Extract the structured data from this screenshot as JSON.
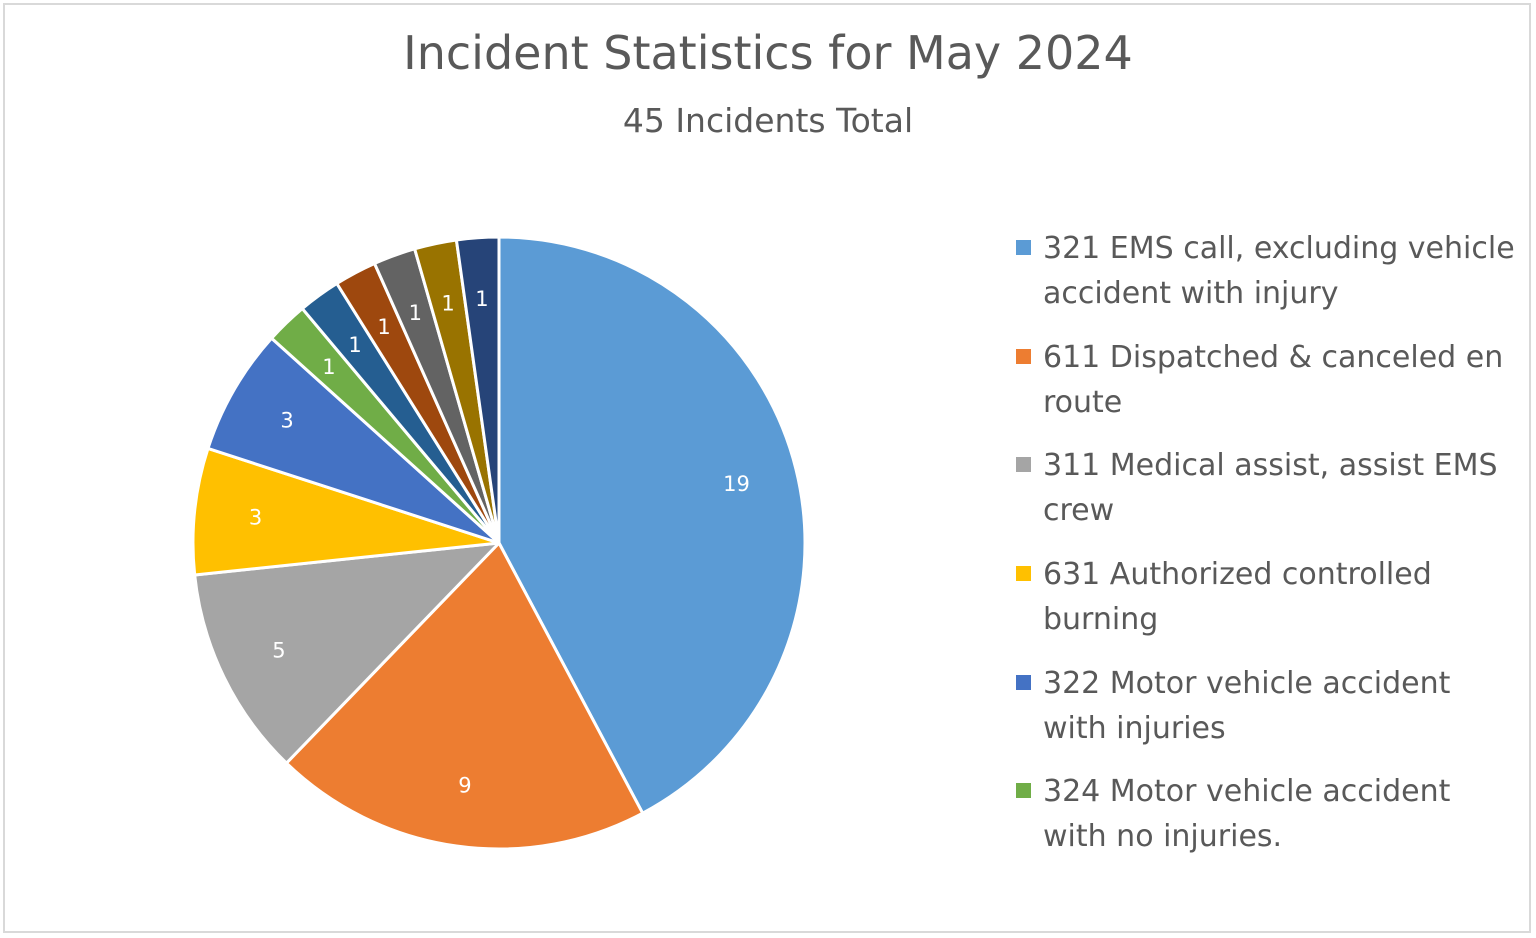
{
  "chart_data": {
    "type": "pie",
    "title": "Incident Statistics for May 2024",
    "subtitle": "45 Incidents Total",
    "slices": [
      {
        "label": "321 EMS call, excluding vehicle accident with injury",
        "value": 19,
        "color": "#5b9bd5"
      },
      {
        "label": "611 Dispatched & canceled en route",
        "value": 9,
        "color": "#ed7d31"
      },
      {
        "label": "311 Medical assist, assist EMS crew",
        "value": 5,
        "color": "#a5a5a5"
      },
      {
        "label": "631 Authorized controlled burning",
        "value": 3,
        "color": "#ffc000"
      },
      {
        "label": "322 Motor vehicle accident with injuries",
        "value": 3,
        "color": "#4472c4"
      },
      {
        "label": "324 Motor vehicle accident with no injuries.",
        "value": 1,
        "color": "#70ad47"
      },
      {
        "label": "",
        "value": 1,
        "color": "#255e91"
      },
      {
        "label": "",
        "value": 1,
        "color": "#9e480e"
      },
      {
        "label": "",
        "value": 1,
        "color": "#636363"
      },
      {
        "label": "",
        "value": 1,
        "color": "#997300"
      },
      {
        "label": "",
        "value": 1,
        "color": "#264478"
      }
    ],
    "legend_position": "right",
    "data_labels": "inside"
  }
}
